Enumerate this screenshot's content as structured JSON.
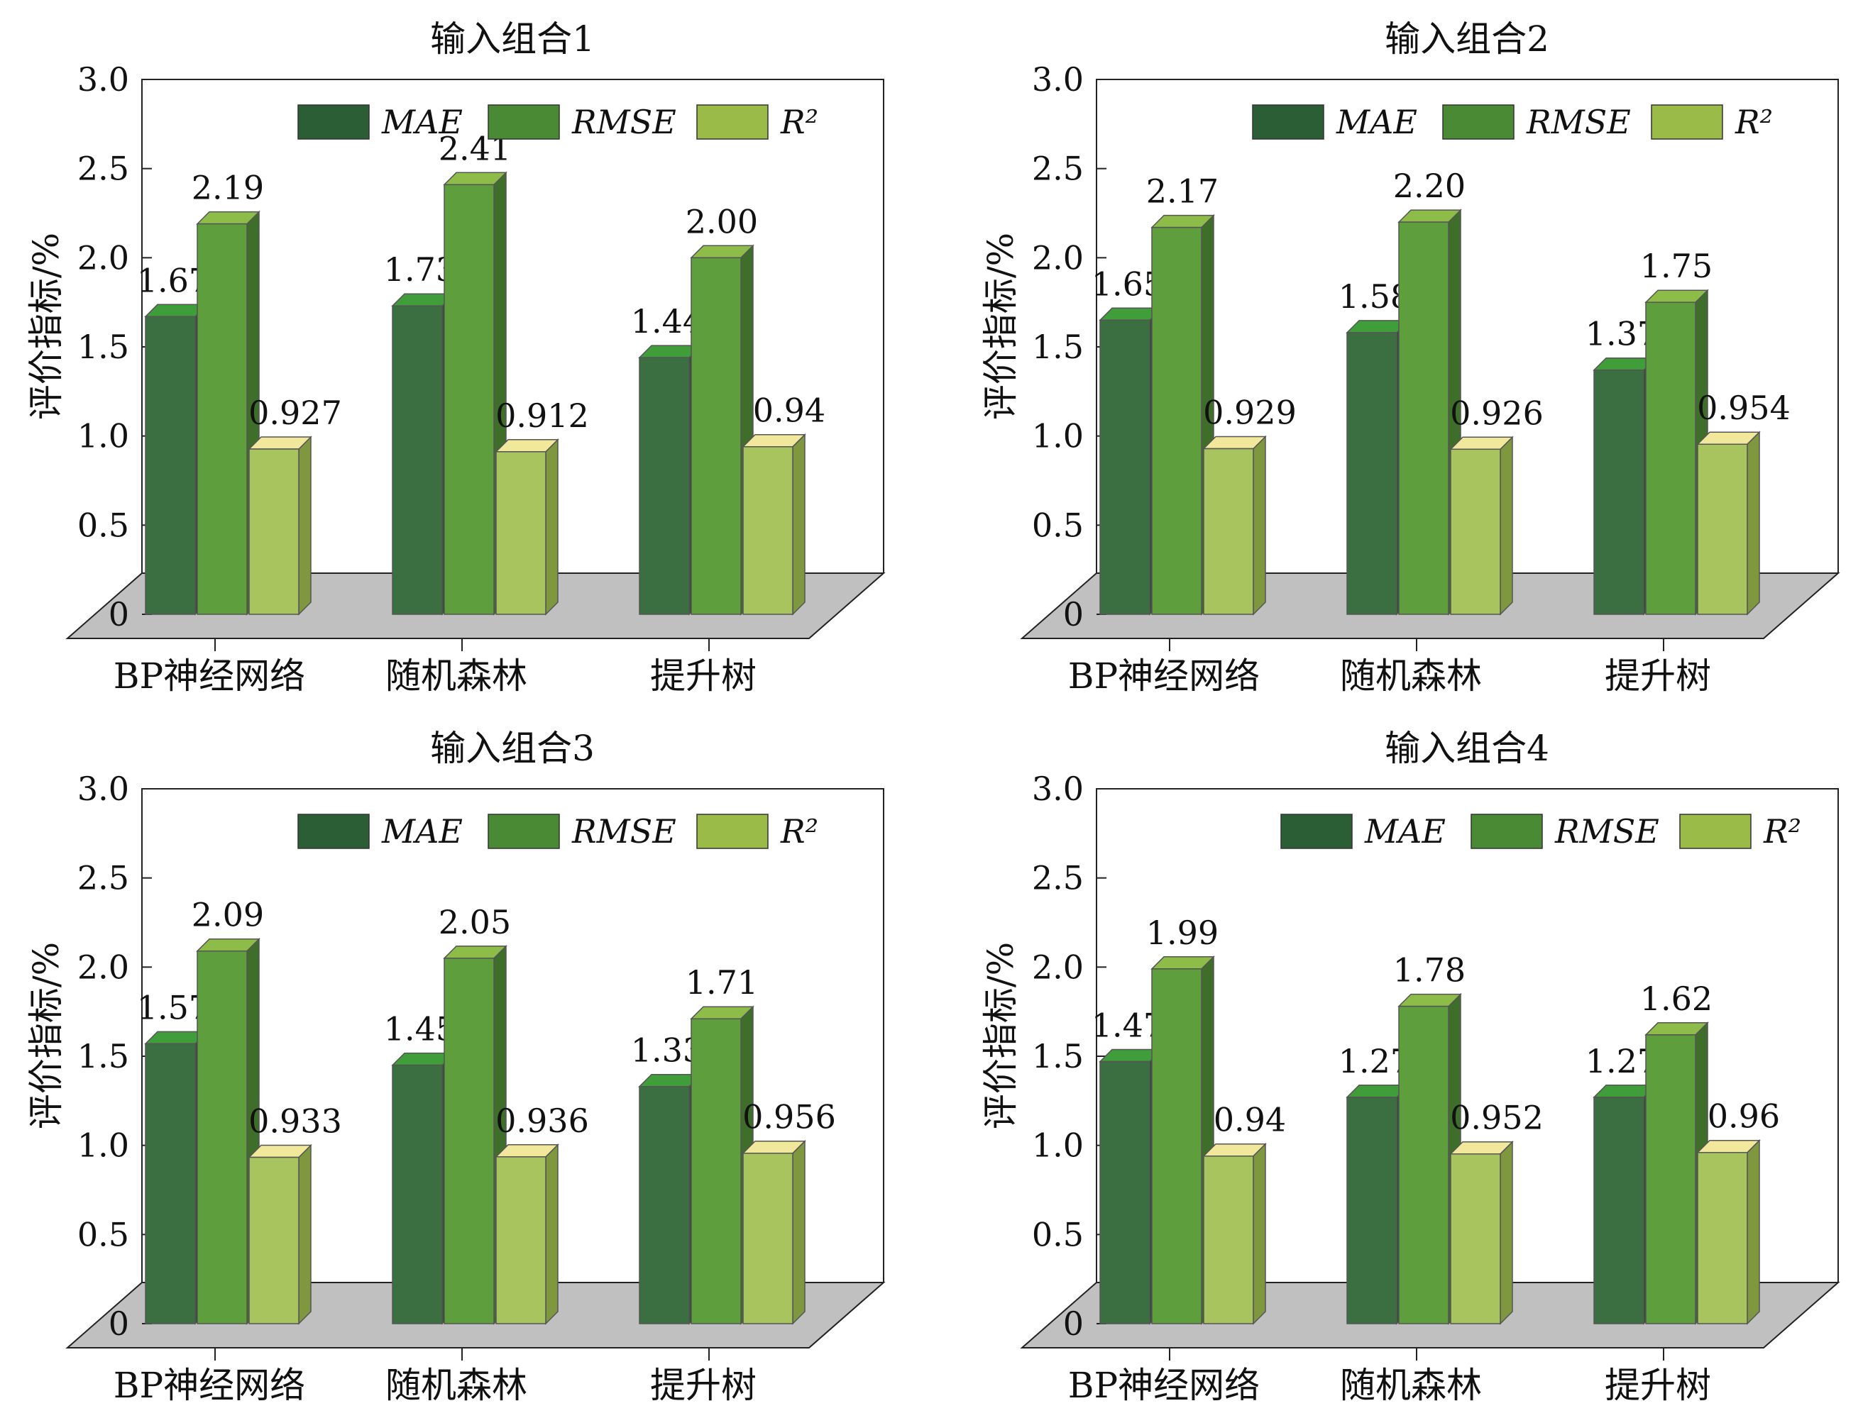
{
  "chart_data": [
    {
      "type": "bar",
      "title": "输入组合1",
      "ylabel": "评价指标/%",
      "ylim": [
        0,
        3.0
      ],
      "yticks": [
        "0",
        "0.5",
        "1.0",
        "1.5",
        "2.0",
        "2.5",
        "3.0"
      ],
      "categories": [
        "BP神经网络",
        "随机森林",
        "提升树"
      ],
      "series": [
        {
          "name": "MAE",
          "values": [
            1.67,
            1.73,
            1.44
          ],
          "labels": [
            "1.67",
            "1.73",
            "1.44"
          ]
        },
        {
          "name": "RMSE",
          "values": [
            2.19,
            2.41,
            2.0
          ],
          "labels": [
            "2.19",
            "2.41",
            "2.00"
          ]
        },
        {
          "name": "R²",
          "values": [
            0.927,
            0.912,
            0.94
          ],
          "labels": [
            "0.927",
            "0.912",
            "0.94"
          ]
        }
      ]
    },
    {
      "type": "bar",
      "title": "输入组合2",
      "ylabel": "评价指标/%",
      "ylim": [
        0,
        3.0
      ],
      "yticks": [
        "0",
        "0.5",
        "1.0",
        "1.5",
        "2.0",
        "2.5",
        "3.0"
      ],
      "categories": [
        "BP神经网络",
        "随机森林",
        "提升树"
      ],
      "series": [
        {
          "name": "MAE",
          "values": [
            1.65,
            1.58,
            1.37
          ],
          "labels": [
            "1.65",
            "1.58",
            "1.37"
          ]
        },
        {
          "name": "RMSE",
          "values": [
            2.17,
            2.2,
            1.75
          ],
          "labels": [
            "2.17",
            "2.20",
            "1.75"
          ]
        },
        {
          "name": "R²",
          "values": [
            0.929,
            0.926,
            0.954
          ],
          "labels": [
            "0.929",
            "0.926",
            "0.954"
          ]
        }
      ]
    },
    {
      "type": "bar",
      "title": "输入组合3",
      "ylabel": "评价指标/%",
      "ylim": [
        0,
        3.0
      ],
      "yticks": [
        "0",
        "0.5",
        "1.0",
        "1.5",
        "2.0",
        "2.5",
        "3.0"
      ],
      "categories": [
        "BP神经网络",
        "随机森林",
        "提升树"
      ],
      "series": [
        {
          "name": "MAE",
          "values": [
            1.57,
            1.45,
            1.33
          ],
          "labels": [
            "1.57",
            "1.45",
            "1.33"
          ]
        },
        {
          "name": "RMSE",
          "values": [
            2.09,
            2.05,
            1.71
          ],
          "labels": [
            "2.09",
            "2.05",
            "1.71"
          ]
        },
        {
          "name": "R²",
          "values": [
            0.933,
            0.936,
            0.956
          ],
          "labels": [
            "0.933",
            "0.936",
            "0.956"
          ]
        }
      ]
    },
    {
      "type": "bar",
      "title": "输入组合4",
      "ylabel": "评价指标/%",
      "ylim": [
        0,
        3.0
      ],
      "yticks": [
        "0",
        "0.5",
        "1.0",
        "1.5",
        "2.0",
        "2.5",
        "3.0"
      ],
      "categories": [
        "BP神经网络",
        "随机森林",
        "提升树"
      ],
      "series": [
        {
          "name": "MAE",
          "values": [
            1.47,
            1.27,
            1.27
          ],
          "labels": [
            "1.47",
            "1.27",
            "1.27"
          ]
        },
        {
          "name": "RMSE",
          "values": [
            1.99,
            1.78,
            1.62
          ],
          "labels": [
            "1.99",
            "1.78",
            "1.62"
          ]
        },
        {
          "name": "R²",
          "values": [
            0.94,
            0.952,
            0.96
          ],
          "labels": [
            "0.94",
            "0.952",
            "0.96"
          ]
        }
      ]
    }
  ],
  "colors": {
    "MAE": {
      "front": "#3b6e40",
      "side": "#28512c",
      "top": "#3f9d3a"
    },
    "RMSE": {
      "front": "#5f9e3c",
      "side": "#3f6e2a",
      "top": "#8ebc48"
    },
    "R²": {
      "front": "#a8c45e",
      "side": "#7f9840",
      "top": "#f1e89c"
    },
    "floor": "#c0c0c0",
    "legend": {
      "MAE": "#2b5e34",
      "RMSE": "#4b8a34",
      "R²": "#9bbb48"
    }
  },
  "legend_position": "top-right"
}
